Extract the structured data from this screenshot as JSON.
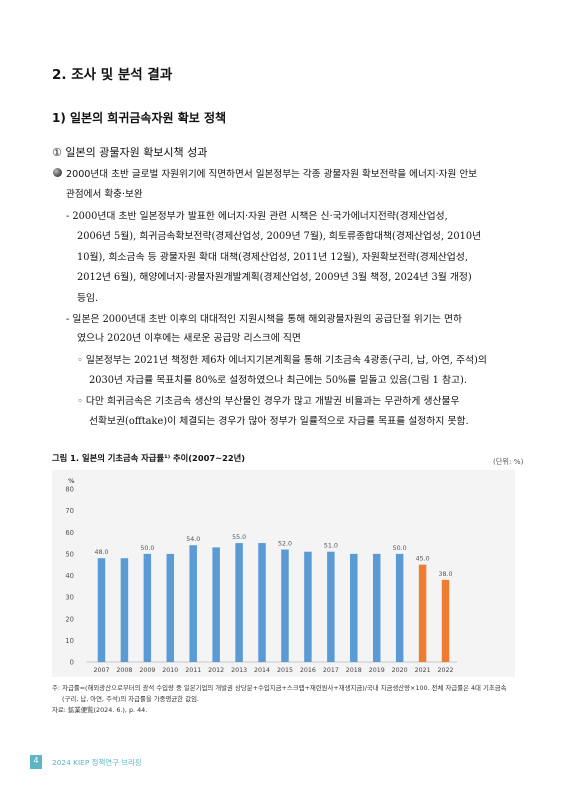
{
  "section_title": "2. 조사 및 분석 결과",
  "subsection_title": "1) 일본의 희귀금속자원 확보 정책",
  "subsubsection_title": "① 일본의 광물자원 확보시책 성과",
  "bullet_lines": [
    "2000년대 초반 글로벌 자원위기에 직면하면서 일본정부는 각종 광물자원 확보전략을 에너지·자원 안보",
    "관점에서 확충·보완"
  ],
  "dash1_lines": [
    "- 2000년대 초반 일본정부가 발표한 에너지·자원 관련 시책은 신·국가에너지전략(경제산업성,",
    "2006년 5월), 희귀금속확보전략(경제산업성, 2009년 7월), 희토류종합대책(경제산업성, 2010년",
    "10월), 희소금속 등 광물자원 확대 대책(경제산업성, 2011년 12월), 자원확보전략(경제산업성,",
    "2012년 6월), 해양에너지·광물자원개발계획(경제산업성, 2009년 3월 책정, 2024년 3월 개정)",
    "등임."
  ],
  "dash2_lines": [
    "- 일본은 2000년대 초반 이후의 대대적인 지원시책을 통해 해외광물자원의 공급단절 위기는 면하",
    "였으나 2020년 이후에는 새로운 공급망 리스크에 직면"
  ],
  "circle1_lines": [
    "◦ 일본정부는 2021년 책정한 제6차 에너지기본계획을 통해 기초금속 4광종(구리, 납, 아연, 주석)의",
    "2030년 자급률 목표치를 80%로 설정하였으나 최근에는 50%를 밑돌고 있음(그림 1 참고)."
  ],
  "circle2_lines": [
    "◦ 다만 희귀금속은 기초금속 생산의 부산물인 경우가 많고 개발권 비율과는 무관하게 생산물우",
    "선확보권(offtake)이 체결되는 경우가 많아 정부가 일률적으로 자급률 목표를 설정하지 못함."
  ],
  "figure": {
    "title": "그림 1. 일본의 기초금속 자급률¹⁾ 추이(2007~22년)",
    "unit": "(단위: %)"
  },
  "chart_data": {
    "type": "bar",
    "title": "",
    "ylabel": "%",
    "xlabel": "",
    "ylim": [
      0,
      80
    ],
    "yticks": [
      0,
      10,
      20,
      30,
      40,
      50,
      60,
      70,
      80
    ],
    "categories": [
      "2007",
      "2008",
      "2009",
      "2010",
      "2011",
      "2012",
      "2013",
      "2014",
      "2015",
      "2016",
      "2017",
      "2018",
      "2019",
      "2020",
      "2021",
      "2022"
    ],
    "values": [
      48.0,
      48.0,
      50.0,
      50.0,
      54.0,
      53.0,
      55.0,
      55.0,
      52.0,
      51.0,
      51.0,
      50.0,
      50.0,
      50.0,
      45.0,
      38.0
    ],
    "data_labels": [
      "48.0",
      "",
      "50.0",
      "",
      "54.0",
      "",
      "55.0",
      "",
      "52.0",
      "",
      "51.0",
      "",
      "",
      "50.0",
      "45.0",
      "38.0"
    ],
    "colors": [
      "#5b9bd5",
      "#5b9bd5",
      "#5b9bd5",
      "#5b9bd5",
      "#5b9bd5",
      "#5b9bd5",
      "#5b9bd5",
      "#5b9bd5",
      "#5b9bd5",
      "#5b9bd5",
      "#5b9bd5",
      "#5b9bd5",
      "#5b9bd5",
      "#5b9bd5",
      "#ed7d31",
      "#ed7d31"
    ],
    "grid": false,
    "legend": "none"
  },
  "notes": [
    "주: 자급률=(해외광산으로부터의 광석 수입량 중 일본기업의 개발권 상당분+수입지금+스크랩+재련원사+재생지금)/국내 지금생산량×100. 전체 자급률은 4대 기초금속",
    "(구리, 납, 아연, 주석)의 자급률을 가중평균한 값임.",
    "자료: 鉱業便覧(2024. 6.), p. 44."
  ],
  "footer": {
    "page_number": "4",
    "text": "2024 KIEP 정책연구 브리핑",
    "accent_color": "#5eb5c4"
  }
}
